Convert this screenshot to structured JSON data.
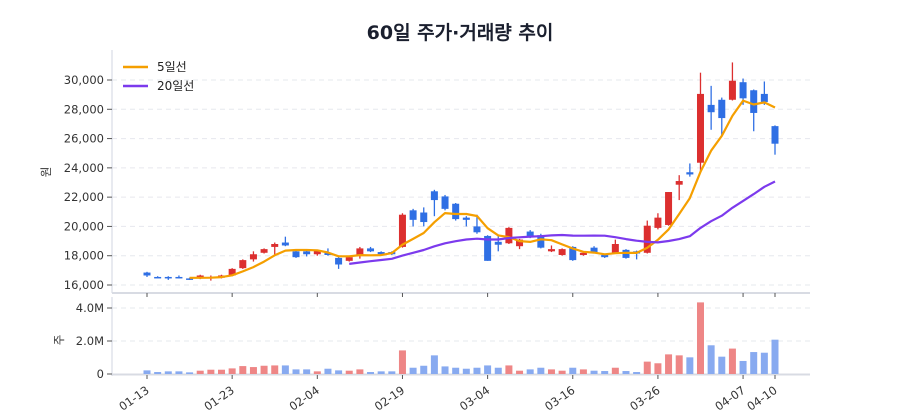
{
  "chart_data": {
    "type": "candlestick+bar",
    "title": "60일 주가·거래량 추이",
    "price_panel": {
      "ylabel": "원",
      "ylim": [
        15500,
        31500
      ],
      "yticks": [
        16000,
        18000,
        20000,
        22000,
        24000,
        26000,
        28000,
        30000
      ],
      "ytick_labels": [
        "16,000",
        "18,000",
        "20,000",
        "22,000",
        "24,000",
        "26,000",
        "28,000",
        "30,000"
      ],
      "grid": true,
      "legend": {
        "placement": "top-left",
        "entries": [
          "5일선",
          "20일선"
        ]
      },
      "candles_ohlc": [
        [
          16850,
          16900,
          16550,
          16650
        ],
        [
          16550,
          16600,
          16500,
          16500
        ],
        [
          16550,
          16600,
          16350,
          16450
        ],
        [
          16550,
          16650,
          16450,
          16500
        ],
        [
          16450,
          16500,
          16350,
          16350
        ],
        [
          16450,
          16700,
          16400,
          16650
        ],
        [
          16500,
          16650,
          16300,
          16550
        ],
        [
          16500,
          16700,
          16450,
          16650
        ],
        [
          16650,
          17150,
          16600,
          17100
        ],
        [
          17150,
          17750,
          17100,
          17700
        ],
        [
          17750,
          18300,
          17600,
          18100
        ],
        [
          18200,
          18500,
          18150,
          18450
        ],
        [
          18600,
          18900,
          18000,
          18800
        ],
        [
          18900,
          19300,
          18650,
          18700
        ],
        [
          18300,
          18400,
          17850,
          17900
        ],
        [
          18300,
          18400,
          17950,
          18100
        ],
        [
          18100,
          18400,
          18000,
          18350
        ],
        [
          18200,
          18500,
          18000,
          18050
        ],
        [
          17850,
          17900,
          17100,
          17400
        ],
        [
          17650,
          17950,
          17600,
          17900
        ],
        [
          18000,
          18600,
          17800,
          18500
        ],
        [
          18500,
          18600,
          18250,
          18300
        ],
        [
          18250,
          18300,
          18050,
          18100
        ],
        [
          18250,
          18300,
          18050,
          18100
        ],
        [
          18600,
          20900,
          18550,
          20800
        ],
        [
          21100,
          21200,
          20000,
          20450
        ],
        [
          20950,
          21300,
          20000,
          20300
        ],
        [
          22400,
          22500,
          20700,
          21800
        ],
        [
          22050,
          22150,
          21100,
          21200
        ],
        [
          21550,
          21600,
          20400,
          20500
        ],
        [
          20600,
          20700,
          20000,
          20450
        ],
        [
          20000,
          20800,
          19500,
          19600
        ],
        [
          19350,
          19400,
          17650,
          17650
        ],
        [
          18950,
          19400,
          18300,
          18750
        ],
        [
          18850,
          19950,
          18800,
          19900
        ],
        [
          18650,
          19150,
          18450,
          19100
        ],
        [
          19650,
          19750,
          19200,
          19300
        ],
        [
          19400,
          19500,
          18500,
          18550
        ],
        [
          18300,
          18700,
          18250,
          18450
        ],
        [
          18050,
          18500,
          18000,
          18450
        ],
        [
          18600,
          18650,
          17650,
          17700
        ],
        [
          18050,
          18250,
          18000,
          18200
        ],
        [
          18550,
          18650,
          18250,
          18250
        ],
        [
          18050,
          18100,
          17850,
          17900
        ],
        [
          18200,
          19100,
          18150,
          18800
        ],
        [
          18400,
          18450,
          17800,
          17850
        ],
        [
          18300,
          18350,
          17750,
          18150
        ],
        [
          18200,
          20400,
          18150,
          20050
        ],
        [
          19900,
          20900,
          19800,
          20600
        ],
        [
          20100,
          22350,
          20050,
          22350
        ],
        [
          22850,
          23500,
          21800,
          23100
        ],
        [
          23700,
          24300,
          23400,
          23550
        ],
        [
          24350,
          30500,
          23700,
          29050
        ],
        [
          28300,
          29600,
          26600,
          27800
        ],
        [
          28650,
          28800,
          26200,
          27400
        ],
        [
          28650,
          31200,
          28600,
          29950
        ],
        [
          29850,
          30100,
          28300,
          28750
        ],
        [
          29300,
          29350,
          26500,
          27750
        ],
        [
          29050,
          29900,
          28300,
          28500
        ],
        [
          26850,
          26900,
          24900,
          25650
        ]
      ],
      "moving_averages": [
        {
          "name": "5일선",
          "window": 5,
          "color": "#f59f00"
        },
        {
          "name": "20일선",
          "window": 20,
          "color": "#7c3aed"
        }
      ]
    },
    "volume_panel": {
      "ylabel": "주",
      "ylim": [
        0,
        4.6
      ],
      "yticks": [
        0,
        2.0,
        4.0
      ],
      "ytick_labels": [
        "0",
        "2.0M",
        "4.0M"
      ],
      "unit": "M",
      "values": [
        0.22,
        0.12,
        0.16,
        0.16,
        0.1,
        0.2,
        0.26,
        0.26,
        0.34,
        0.48,
        0.42,
        0.5,
        0.52,
        0.52,
        0.28,
        0.28,
        0.16,
        0.32,
        0.22,
        0.2,
        0.28,
        0.12,
        0.16,
        0.16,
        1.43,
        0.38,
        0.5,
        1.13,
        0.46,
        0.38,
        0.32,
        0.38,
        0.52,
        0.38,
        0.52,
        0.2,
        0.28,
        0.38,
        0.28,
        0.2,
        0.38,
        0.28,
        0.2,
        0.18,
        0.38,
        0.18,
        0.12,
        0.75,
        0.65,
        1.19,
        1.13,
        1.01,
        4.34,
        1.74,
        1.05,
        1.54,
        0.79,
        1.33,
        1.29,
        2.08
      ]
    },
    "x_ticks": [
      {
        "index": 0,
        "label": "01-13"
      },
      {
        "index": 8,
        "label": "01-23"
      },
      {
        "index": 16,
        "label": "02-04"
      },
      {
        "index": 24,
        "label": "02-19"
      },
      {
        "index": 32,
        "label": "03-04"
      },
      {
        "index": 40,
        "label": "03-16"
      },
      {
        "index": 48,
        "label": "03-26"
      },
      {
        "index": 56,
        "label": "04-07"
      },
      {
        "index": 59,
        "label": "04-10"
      }
    ],
    "colors": {
      "up": "#dc2f2f",
      "down": "#2f6fe4",
      "volume_up": "#ee8686",
      "volume_down": "#88aaf0"
    }
  }
}
